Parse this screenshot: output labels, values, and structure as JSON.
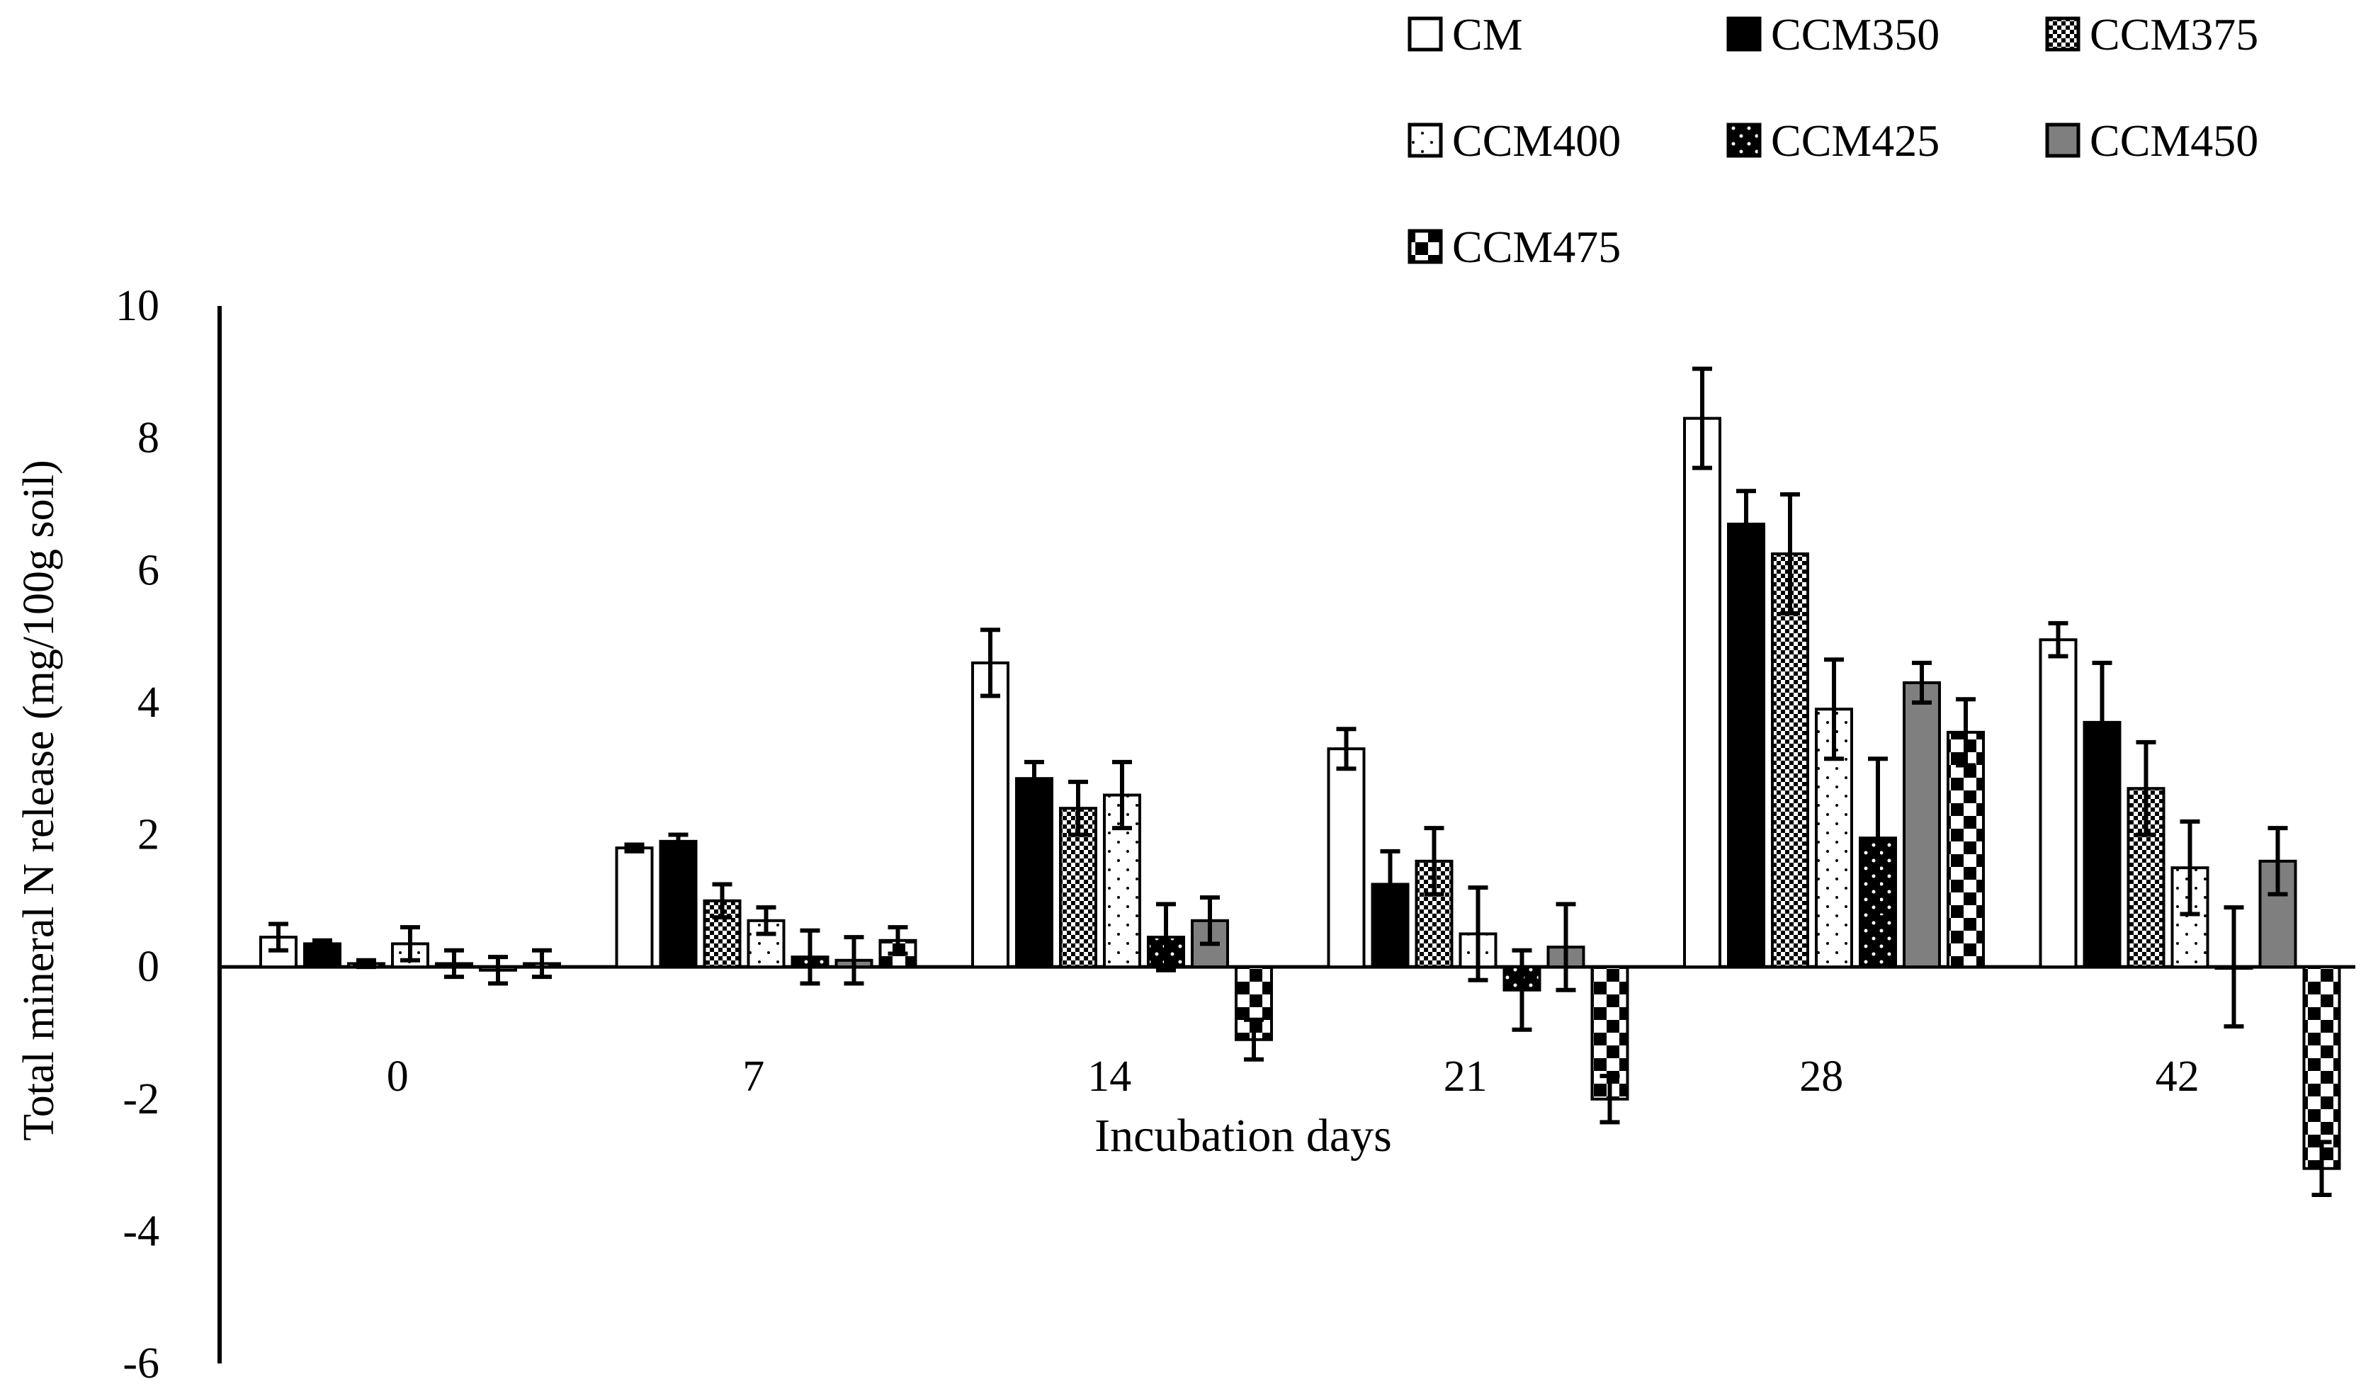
{
  "chart_data": {
    "type": "bar",
    "title": "",
    "xlabel": "Incubation days",
    "ylabel": "Total mineral N release (mg/100g soil)",
    "ylim": [
      -6,
      10
    ],
    "yticks": [
      "10",
      "8",
      "6",
      "4",
      "2",
      "0",
      "-2",
      "-4",
      "-6"
    ],
    "categories": [
      "0",
      "7",
      "14",
      "21",
      "28",
      "42"
    ],
    "legend_position": "top-right",
    "series": [
      {
        "name": "CM",
        "pattern": "open",
        "values": [
          0.45,
          1.8,
          4.6,
          3.3,
          8.3,
          4.95
        ],
        "errors": [
          0.2,
          0.05,
          0.5,
          0.3,
          0.75,
          0.25
        ]
      },
      {
        "name": "CCM350",
        "pattern": "solid",
        "values": [
          0.35,
          1.9,
          2.85,
          1.25,
          6.7,
          3.7
        ],
        "errors": [
          0.05,
          0.1,
          0.25,
          0.5,
          0.5,
          0.9
        ]
      },
      {
        "name": "CCM375",
        "pattern": "checker",
        "values": [
          0.05,
          1.0,
          2.4,
          1.6,
          6.25,
          2.7
        ],
        "errors": [
          0.05,
          0.25,
          0.4,
          0.5,
          0.9,
          0.7
        ]
      },
      {
        "name": "CCM400",
        "pattern": "dots",
        "values": [
          0.35,
          0.7,
          2.6,
          0.5,
          3.9,
          1.5
        ],
        "errors": [
          0.25,
          0.2,
          0.5,
          0.7,
          0.75,
          0.7
        ]
      },
      {
        "name": "CCM425",
        "pattern": "blackdots",
        "values": [
          0.05,
          0.15,
          0.45,
          -0.35,
          1.95,
          0.0
        ],
        "errors": [
          0.2,
          0.4,
          0.5,
          0.6,
          1.2,
          0.9
        ]
      },
      {
        "name": "CCM450",
        "pattern": "gray",
        "values": [
          -0.05,
          0.1,
          0.7,
          0.3,
          4.3,
          1.6
        ],
        "errors": [
          0.2,
          0.35,
          0.35,
          0.65,
          0.3,
          0.5
        ]
      },
      {
        "name": "CCM475",
        "pattern": "bigcheck",
        "values": [
          0.05,
          0.4,
          -1.1,
          -2.0,
          3.55,
          -3.05
        ],
        "errors": [
          0.2,
          0.2,
          0.3,
          0.35,
          0.5,
          0.4
        ]
      }
    ]
  }
}
